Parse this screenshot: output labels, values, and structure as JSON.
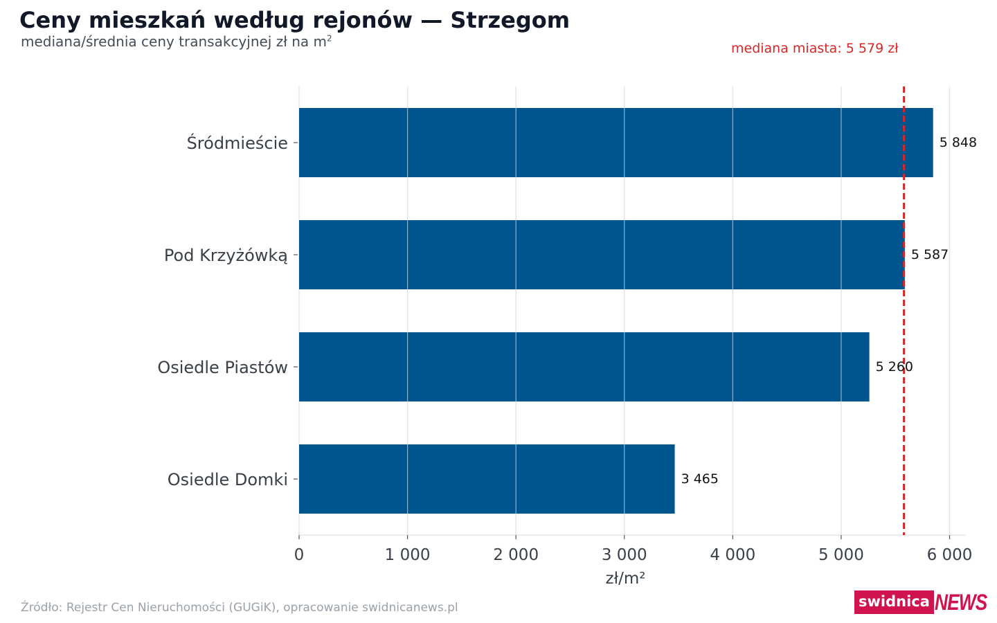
{
  "header": {
    "title": "Ceny mieszkań według rejonów — Strzegom",
    "subtitle": "mediana/średnia ceny transakcyjnej zł na m",
    "subtitle_sup": "2"
  },
  "footer": {
    "source": "Źródło: Rejestr Cen Nieruchomości (GUGiK), opracowanie swidnicanews.pl",
    "logo_left": "swidnica",
    "logo_right": "NEWS"
  },
  "colors": {
    "bar": "#01558f",
    "median_line": "#d62728",
    "grid": "#e3e6ea",
    "brand": "#d0134f"
  },
  "chart_data": {
    "type": "bar",
    "orientation": "horizontal",
    "categories": [
      "Śródmieście",
      "Pod Krzyżówką",
      "Osiedle Piastów",
      "Osiedle Domki"
    ],
    "values": [
      5848,
      5587,
      5260,
      3465
    ],
    "value_labels": [
      "5 848",
      "5 587",
      "5 260",
      "3 465"
    ],
    "xlabel": "zł/m²",
    "ylabel": "",
    "xlim": [
      0,
      6150
    ],
    "x_ticks": [
      0,
      1000,
      2000,
      3000,
      4000,
      5000,
      6000
    ],
    "x_tick_labels": [
      "0",
      "1 000",
      "2 000",
      "3 000",
      "4 000",
      "5 000",
      "6 000"
    ],
    "grid": "vertical",
    "reference_line": {
      "value": 5579,
      "label": "mediana miasta: 5 579 zł",
      "style": "dashed"
    }
  }
}
